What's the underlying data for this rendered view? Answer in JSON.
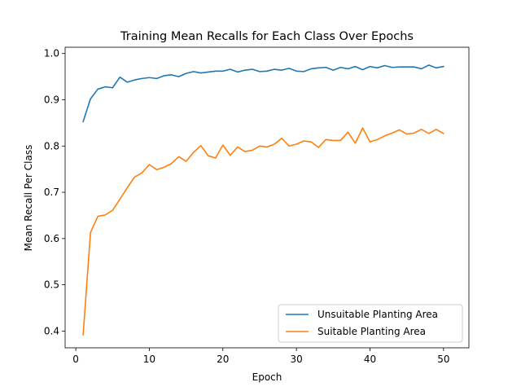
{
  "chart_data": {
    "type": "line",
    "title": "Training Mean Recalls for Each Class Over Epochs",
    "xlabel": "Epoch",
    "ylabel": "Mean Recall Per Class",
    "xlim": [
      -1.45,
      53.45
    ],
    "ylim": [
      0.3637,
      1.0136
    ],
    "xticks": [
      0,
      10,
      20,
      30,
      40,
      50
    ],
    "yticks": [
      0.4,
      0.5,
      0.6,
      0.7,
      0.8,
      0.9,
      1.0
    ],
    "ytick_labels": [
      "0.4",
      "0.5",
      "0.6",
      "0.7",
      "0.8",
      "0.9",
      "1.0"
    ],
    "grid": false,
    "legend_position": "lower-right",
    "x": [
      1,
      2,
      3,
      4,
      5,
      6,
      7,
      8,
      9,
      10,
      11,
      12,
      13,
      14,
      15,
      16,
      17,
      18,
      19,
      20,
      21,
      22,
      23,
      24,
      25,
      26,
      27,
      28,
      29,
      30,
      31,
      32,
      33,
      34,
      35,
      36,
      37,
      38,
      39,
      40,
      41,
      42,
      43,
      44,
      45,
      46,
      47,
      48,
      49,
      50
    ],
    "series": [
      {
        "name": "Unsuitable Planting Area",
        "color": "#1f77b4",
        "values": [
          0.853,
          0.902,
          0.923,
          0.928,
          0.926,
          0.949,
          0.938,
          0.943,
          0.946,
          0.948,
          0.946,
          0.952,
          0.954,
          0.95,
          0.957,
          0.961,
          0.958,
          0.96,
          0.962,
          0.962,
          0.966,
          0.96,
          0.964,
          0.966,
          0.961,
          0.962,
          0.966,
          0.964,
          0.968,
          0.962,
          0.961,
          0.967,
          0.969,
          0.97,
          0.964,
          0.97,
          0.967,
          0.972,
          0.965,
          0.972,
          0.969,
          0.974,
          0.97,
          0.971,
          0.971,
          0.971,
          0.967,
          0.975,
          0.969,
          0.972
        ]
      },
      {
        "name": "Suitable Planting Area",
        "color": "#ff7f0e",
        "values": [
          0.392,
          0.613,
          0.648,
          0.651,
          0.661,
          0.685,
          0.71,
          0.733,
          0.742,
          0.76,
          0.749,
          0.754,
          0.762,
          0.777,
          0.767,
          0.786,
          0.801,
          0.779,
          0.774,
          0.802,
          0.78,
          0.798,
          0.788,
          0.791,
          0.8,
          0.798,
          0.804,
          0.817,
          0.8,
          0.804,
          0.811,
          0.809,
          0.797,
          0.814,
          0.812,
          0.812,
          0.83,
          0.806,
          0.839,
          0.809,
          0.814,
          0.822,
          0.828,
          0.835,
          0.826,
          0.828,
          0.836,
          0.827,
          0.836,
          0.827
        ]
      }
    ]
  }
}
